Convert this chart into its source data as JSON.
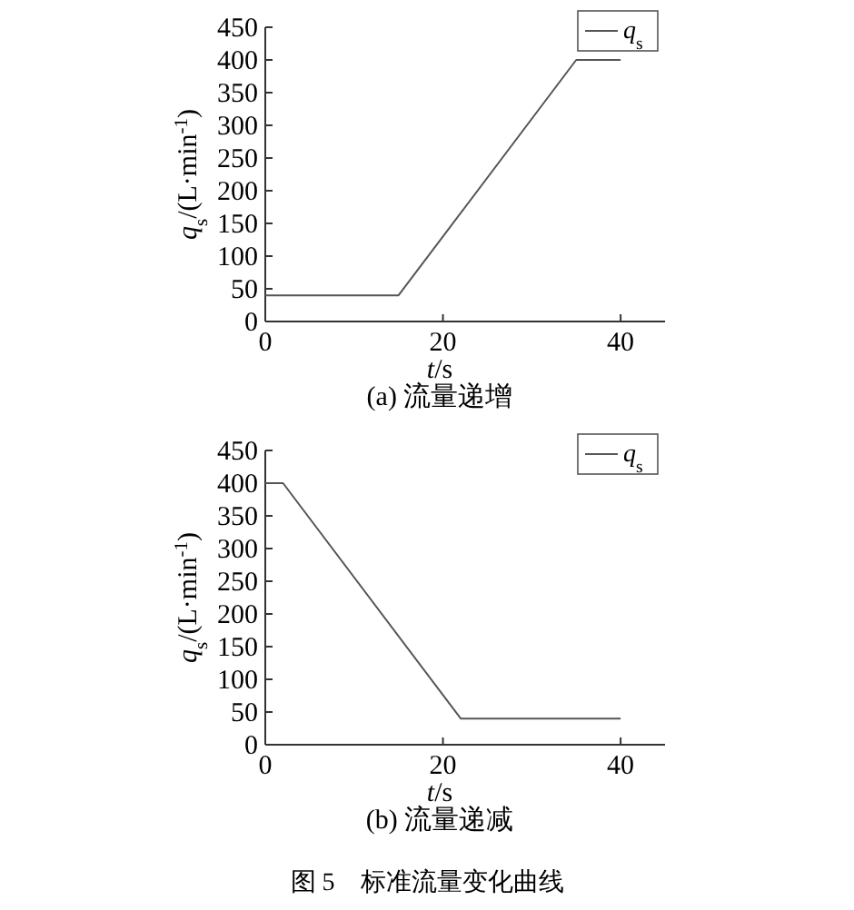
{
  "chart_data": [
    {
      "type": "line",
      "title": "(a) 流量递增",
      "xlabel": "*t*/s",
      "ylabel": "*q*$_{s}$/(L·min$^{-1}$)",
      "x": [
        0,
        15,
        35,
        40
      ],
      "series": [
        {
          "name": "*q*$_{s}$",
          "color": "#555555",
          "values": [
            40,
            40,
            400,
            400
          ]
        }
      ],
      "xlim": [
        0,
        45
      ],
      "ylim": [
        0,
        450
      ],
      "xticks": [
        0,
        20,
        40
      ],
      "yticks": [
        0,
        50,
        100,
        150,
        200,
        250,
        300,
        350,
        400,
        450
      ],
      "legend": "top right",
      "grid": false,
      "marker": "none",
      "line_style": "solid"
    },
    {
      "type": "line",
      "title": "(b) 流量递减",
      "xlabel": "*t*/s",
      "ylabel": "*q*$_{s}$/(L·min$^{-1}$)",
      "x": [
        0,
        2,
        22,
        40
      ],
      "series": [
        {
          "name": "*q*$_{s}$",
          "color": "#555555",
          "values": [
            400,
            400,
            40,
            40
          ]
        }
      ],
      "xlim": [
        0,
        45
      ],
      "ylim": [
        0,
        450
      ],
      "xticks": [
        0,
        20,
        40
      ],
      "yticks": [
        0,
        50,
        100,
        150,
        200,
        250,
        300,
        350,
        400,
        450
      ],
      "legend": "top right",
      "grid": false,
      "marker": "none",
      "line_style": "solid",
      "annotations": [
        "图 5　标准流量变化曲线"
      ]
    }
  ]
}
